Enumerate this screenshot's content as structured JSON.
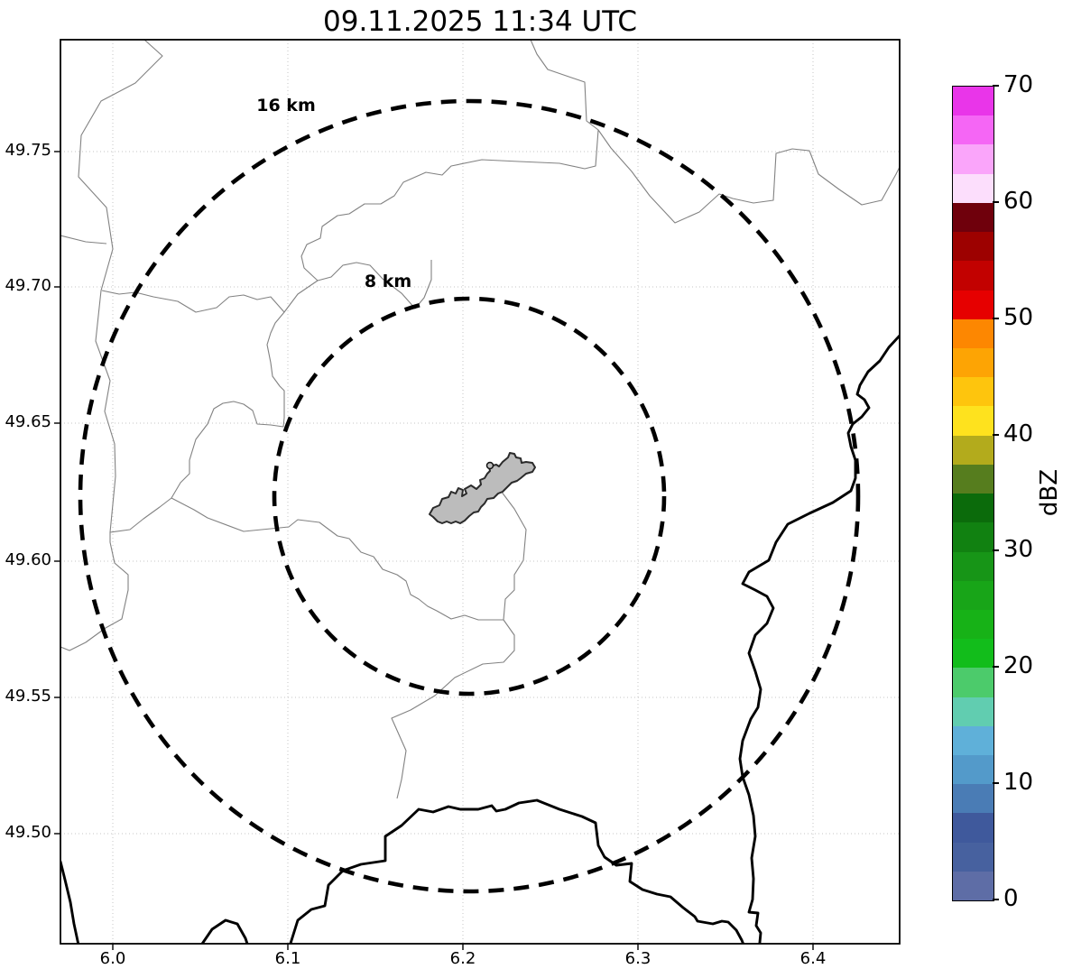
{
  "title": "09.11.2025 11:34 UTC",
  "map": {
    "ring_labels": {
      "outer": "16 km",
      "inner": "8 km"
    },
    "x_ticks": [
      "6.0",
      "6.1",
      "6.2",
      "6.3",
      "6.4"
    ],
    "y_ticks": [
      "49.75",
      "49.70",
      "49.65",
      "49.60",
      "49.55",
      "49.50"
    ]
  },
  "colorbar": {
    "label": "dBZ",
    "tick_labels": [
      "70",
      "60",
      "50",
      "40",
      "30",
      "20",
      "10",
      "0"
    ],
    "segment_colors_top_to_bottom": [
      "#e935e9",
      "#f566f5",
      "#faa5fa",
      "#fcdefc",
      "#6f000c",
      "#9d0100",
      "#c20100",
      "#e60000",
      "#fd8701",
      "#fda404",
      "#fec50d",
      "#fee21e",
      "#b3ab1c",
      "#567d1e",
      "#0b6b0b",
      "#118111",
      "#179517",
      "#18a518",
      "#17b217",
      "#12bd1b",
      "#4ccb6b",
      "#61cdb0",
      "#5fb0d9",
      "#539aca",
      "#4a7cb5",
      "#3f599c",
      "#47619f",
      "#5e6da6"
    ]
  },
  "chart_data": {
    "type": "map",
    "title": "09.11.2025 11:34 UTC",
    "x_axis_ticks_deg": [
      6.0,
      6.1,
      6.2,
      6.3,
      6.4
    ],
    "y_axis_ticks_deg": [
      49.75,
      49.7,
      49.65,
      49.6,
      49.55,
      49.5
    ],
    "x_range_deg": [
      5.97,
      6.449
    ],
    "y_range_deg": [
      49.459,
      49.791
    ],
    "range_rings_km": [
      8,
      16
    ],
    "ring_center_approx_deg": [
      6.204,
      49.624
    ],
    "colorbar": {
      "units": "dBZ",
      "min": 0,
      "max": 70,
      "step_per_segment": 2.5,
      "tick_values": [
        0,
        10,
        20,
        30,
        40,
        50,
        60,
        70
      ]
    },
    "radar_echoes_visible": "none (map area blank/white)"
  }
}
